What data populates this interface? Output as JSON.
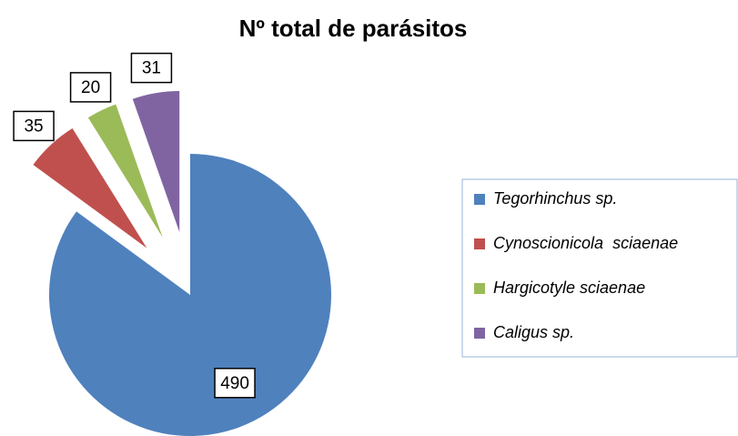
{
  "chart_data": {
    "type": "pie",
    "title": "Nº total de parásitos",
    "categories": [
      "Tegorhinchus sp.",
      "Cynoscionicola  sciaenae",
      "Hargicotyle sciaenae",
      "Caligus sp."
    ],
    "values": [
      490,
      35,
      20,
      31
    ],
    "colors": [
      "#4f81bd",
      "#c0504d",
      "#9bbb59",
      "#8064a2"
    ],
    "legend": "right"
  }
}
